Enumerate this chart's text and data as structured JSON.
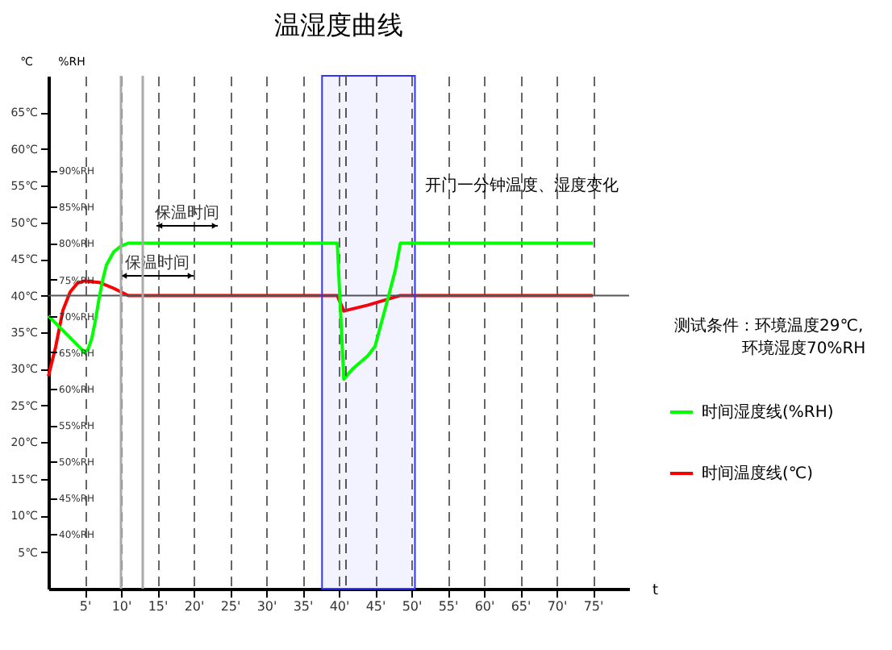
{
  "chart_data": {
    "type": "line",
    "title": "温湿度曲线",
    "xlabel": "t",
    "ylabel": "℃",
    "y2label": "%RH",
    "annotations": [
      "测试条件：环境温度29℃,",
      "环境湿度70%RH",
      "保温时间",
      "保温时间"
    ],
    "series": [
      {
        "name": "时间湿度线(%RH)",
        "color": "#00ff00",
        "axis": "y2",
        "x": [
          0,
          5,
          5.5,
          6,
          6.5,
          7,
          7.5,
          8,
          9,
          10,
          11,
          12.6,
          39.8,
          40.7,
          42,
          44,
          45,
          46.7,
          47.8,
          48.5,
          75
        ],
        "values": [
          70,
          65,
          65.5,
          67,
          69.5,
          72.5,
          75,
          77,
          78.8,
          79.6,
          80,
          80,
          80,
          61.3,
          62.8,
          64.5,
          65.8,
          72.1,
          76.3,
          80,
          80
        ]
      },
      {
        "name": "时间温度线(℃)",
        "color": "#ff0000",
        "axis": "y",
        "x": [
          0,
          1,
          2,
          3,
          4,
          5,
          7,
          9,
          11,
          12,
          39.8,
          40.7,
          44,
          48.4,
          75
        ],
        "values": [
          29,
          33,
          38,
          40.5,
          41.7,
          42,
          41.8,
          41,
          40,
          40,
          40,
          37.9,
          38.7,
          40,
          40
        ]
      }
    ],
    "xlim": [
      0,
      80
    ],
    "xticks": [
      {
        "value": 5,
        "label": "5'"
      },
      {
        "value": 10,
        "label": "10'"
      },
      {
        "value": 15,
        "label": "15'"
      },
      {
        "value": 20,
        "label": "20'"
      },
      {
        "value": 25,
        "label": "25'"
      },
      {
        "value": 30,
        "label": "30'"
      },
      {
        "value": 35,
        "label": "35'"
      },
      {
        "value": 40,
        "label": "40'"
      },
      {
        "value": 45,
        "label": "45'"
      },
      {
        "value": 50,
        "label": "50'"
      },
      {
        "value": 55,
        "label": "55'"
      },
      {
        "value": 60,
        "label": "60'"
      },
      {
        "value": 65,
        "label": "65'"
      },
      {
        "value": 70,
        "label": "70'"
      },
      {
        "value": 75,
        "label": "75'"
      }
    ],
    "ylim": [
      0,
      70
    ],
    "yticks": [
      {
        "value": 5,
        "label": "5℃"
      },
      {
        "value": 10,
        "label": "10℃"
      },
      {
        "value": 15,
        "label": "15℃"
      },
      {
        "value": 20,
        "label": "20℃"
      },
      {
        "value": 25,
        "label": "25℃"
      },
      {
        "value": 30,
        "label": "30℃"
      },
      {
        "value": 35,
        "label": "35℃"
      },
      {
        "value": 40,
        "label": "40℃"
      },
      {
        "value": 45,
        "label": "45℃"
      },
      {
        "value": 50,
        "label": "50℃"
      },
      {
        "value": 55,
        "label": "55℃"
      },
      {
        "value": 60,
        "label": "60℃"
      },
      {
        "value": 65,
        "label": "65℃"
      }
    ],
    "y2lim": [
      32.5,
      103
    ],
    "y2ticks": [
      {
        "value": 40,
        "label": "40%RH"
      },
      {
        "value": 45,
        "label": "45%RH"
      },
      {
        "value": 50,
        "label": "50%RH"
      },
      {
        "value": 55,
        "label": "55%RH"
      },
      {
        "value": 60,
        "label": "60%RH"
      },
      {
        "value": 65,
        "label": "65%RH"
      },
      {
        "value": 70,
        "label": "70%RH"
      },
      {
        "value": 75,
        "label": "75%RH"
      },
      {
        "value": 80,
        "label": "80%RH"
      },
      {
        "value": 85,
        "label": "85%RH"
      },
      {
        "value": 90,
        "label": "90%RH"
      }
    ],
    "grid": "x",
    "legend": "right",
    "ref_lines": [
      {
        "axis": "y",
        "value": 40,
        "color": "#555555"
      },
      {
        "axis": "x",
        "value": 10,
        "color": "#aaaaaa"
      },
      {
        "axis": "x",
        "value": 13,
        "color": "#aaaaaa"
      },
      {
        "axis": "x",
        "value": 41,
        "color": "#555555",
        "line_style": "dashed"
      }
    ],
    "bands": [
      {
        "axis": "x",
        "from": 37.7,
        "to": 50.5,
        "color": "#3333ff",
        "label": "开门一分钟温度、湿度变化"
      }
    ]
  }
}
